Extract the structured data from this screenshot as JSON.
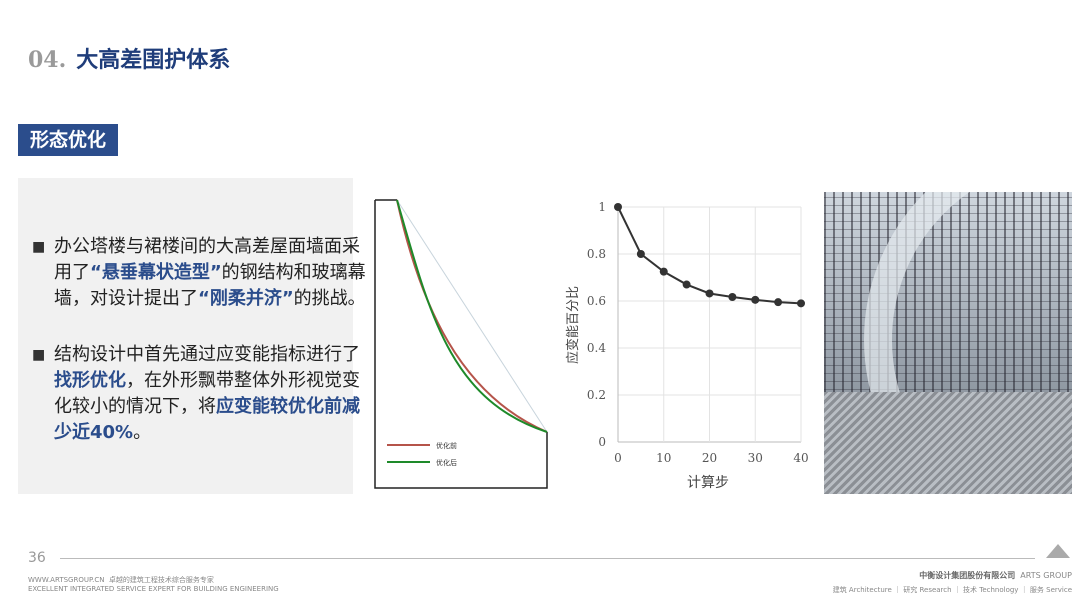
{
  "header": {
    "number": "04.",
    "title": "大高差围护体系"
  },
  "section_tag": "形态优化",
  "bullets": [
    {
      "parts": [
        {
          "t": "办公塔楼与裙楼间的大高差屋面墙面采用了",
          "h": false
        },
        {
          "t": "“悬垂幕状造型”",
          "h": true
        },
        {
          "t": "的钢结构和玻璃幕墙，对设计提出了",
          "h": false
        },
        {
          "t": "“刚柔并济”",
          "h": true
        },
        {
          "t": "的挑战。",
          "h": false
        }
      ]
    },
    {
      "parts": [
        {
          "t": "结构设计中首先通过应变能指标进行了",
          "h": false
        },
        {
          "t": "找形优化",
          "h": true
        },
        {
          "t": "，在外形飘带整体外形视觉变化较小的情况下，将",
          "h": false
        },
        {
          "t": "应变能较优化前减少近40%",
          "h": true
        },
        {
          "t": "。",
          "h": false
        }
      ]
    }
  ],
  "shape_diagram": {
    "legend": [
      {
        "label": "优化前",
        "color": "#b5544a"
      },
      {
        "label": "优化后",
        "color": "#1e8a2a"
      }
    ]
  },
  "chart_data": {
    "type": "line",
    "x": [
      0,
      5,
      10,
      15,
      20,
      25,
      30,
      35,
      40
    ],
    "series": [
      {
        "values": [
          1,
          0.8,
          0.725,
          0.67,
          0.632,
          0.617,
          0.605,
          0.595,
          0.59
        ]
      }
    ],
    "xlabel": "计算步",
    "ylabel": "应变能百分比",
    "xlim": [
      0,
      40
    ],
    "ylim": [
      0,
      1
    ],
    "xticks": [
      "0",
      "10",
      "20",
      "30",
      "40"
    ],
    "yticks": [
      "0",
      "0.2",
      "0.4",
      "0.6",
      "0.8",
      "1"
    ],
    "grid": true
  },
  "footer": {
    "page": "36",
    "url": "WWW.ARTSGROUP.CN",
    "slogan_cn": "卓越的建筑工程技术综合服务专家",
    "slogan_en": "EXCELLENT INTEGRATED SERVICE EXPERT FOR BUILDING ENGINEERING",
    "company_cn": "中衡设计集团股份有限公司",
    "company_en": "ARTS GROUP",
    "services": "建筑 Architecture ｜ 研究 Research ｜ 技术 Technology ｜ 服务 Service"
  }
}
